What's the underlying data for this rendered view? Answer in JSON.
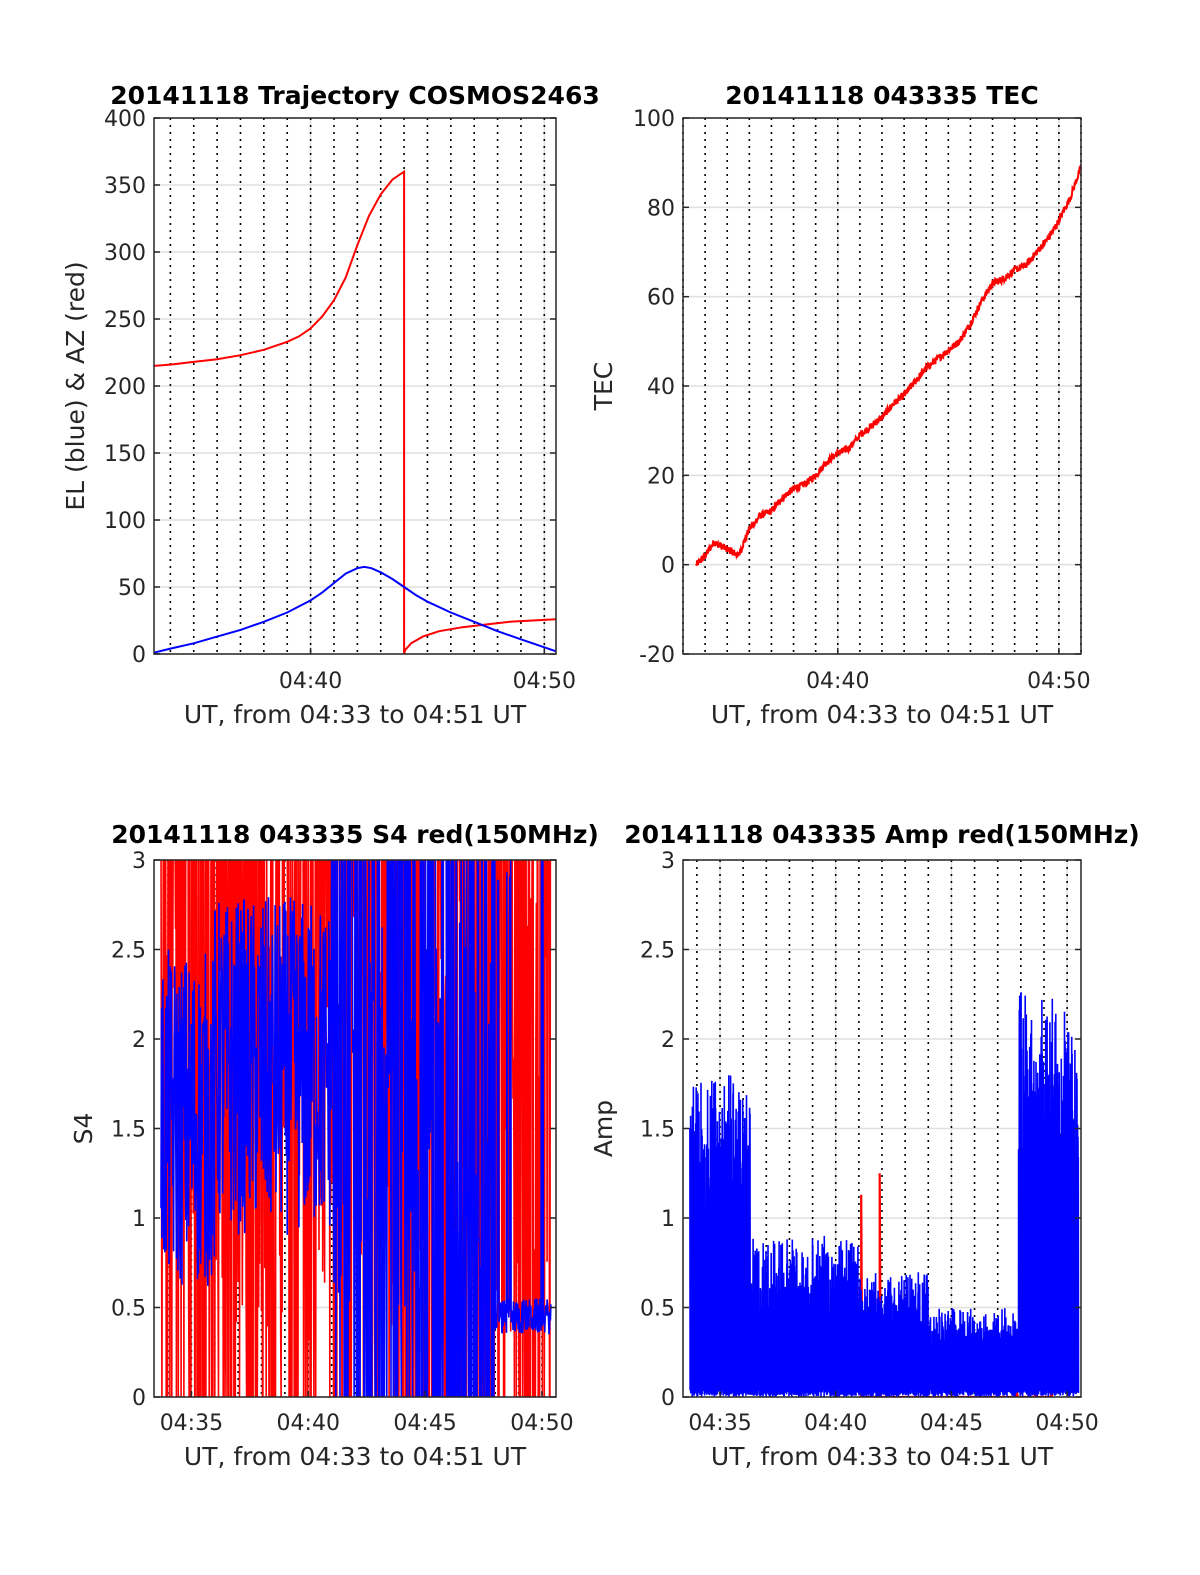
{
  "chart_data": [
    {
      "type": "line",
      "title": "20141118 Trajectory COSMOS2463",
      "xlabel": "UT, from 04:33 to 04:51 UT",
      "ylabel": "EL (blue) & AZ (red)",
      "xlim_min": [
        33.3,
        50.5
      ],
      "ylim": [
        0,
        400
      ],
      "yticks": [
        0,
        50,
        100,
        150,
        200,
        250,
        300,
        350,
        400
      ],
      "xticks": [
        {
          "value": 40,
          "label": "04:40"
        },
        {
          "value": 50,
          "label": "04:50"
        }
      ],
      "grid": true,
      "series": [
        {
          "color": "#ff0000",
          "x": [
            33.3,
            34,
            35,
            36,
            37,
            38,
            39,
            39.5,
            40,
            40.5,
            41,
            41.5,
            42,
            42.5,
            43,
            43.5,
            44.0,
            44.0,
            44.05,
            44.3,
            44.8,
            45.5,
            46.5,
            47.5,
            48.5,
            49.5,
            50.5
          ],
          "y": [
            215,
            216,
            218,
            220,
            223,
            227,
            233,
            237,
            243,
            252,
            264,
            281,
            305,
            327,
            343,
            354,
            360,
            0,
            3,
            8,
            13,
            17,
            20,
            22,
            24,
            25,
            26
          ]
        },
        {
          "color": "#0000ff",
          "x": [
            33.3,
            34,
            35,
            36,
            37,
            38,
            39,
            40,
            40.5,
            41,
            41.5,
            42,
            42.3,
            42.6,
            43,
            43.5,
            44,
            44.5,
            45,
            46,
            47,
            48,
            49,
            50,
            50.5
          ],
          "y": [
            1,
            4,
            8,
            13,
            18,
            24,
            31,
            40,
            46,
            53,
            60,
            64,
            65,
            64,
            61,
            56,
            50,
            44,
            39,
            31,
            24,
            17,
            11,
            5,
            2
          ]
        }
      ]
    },
    {
      "type": "line",
      "title": "20141118 043335 TEC",
      "xlabel": "UT, from 04:33 to 04:51 UT",
      "ylabel": "TEC",
      "xlim_min": [
        33.0,
        51.0
      ],
      "ylim": [
        -20,
        100
      ],
      "yticks": [
        -20,
        0,
        20,
        40,
        60,
        80,
        100
      ],
      "xticks": [
        {
          "value": 40,
          "label": "04:40"
        },
        {
          "value": 50,
          "label": "04:50"
        }
      ],
      "grid": true,
      "series": [
        {
          "color": "#ff0000",
          "x": [
            33.6,
            34.0,
            34.4,
            34.8,
            35.2,
            35.5,
            36.0,
            36.5,
            37.0,
            37.5,
            38.0,
            38.5,
            39.0,
            39.5,
            40.0,
            40.5,
            41.0,
            41.5,
            42.0,
            42.5,
            43.0,
            43.5,
            44.0,
            44.5,
            45.0,
            45.5,
            46.0,
            46.5,
            47.0,
            47.5,
            48.0,
            48.5,
            49.0,
            49.5,
            50.0,
            50.5,
            51.0
          ],
          "y": [
            0,
            2,
            5,
            4,
            3,
            2,
            8,
            11,
            12,
            15,
            17,
            18,
            20,
            23,
            25,
            26,
            29,
            31,
            33,
            36,
            38,
            41,
            44,
            46,
            48,
            50,
            54,
            59,
            63,
            64,
            66,
            67,
            70,
            73,
            77,
            82,
            89
          ]
        }
      ]
    },
    {
      "type": "line",
      "title": "20141118 043335 S4 red(150MHz)",
      "xlabel": "UT, from 04:33 to 04:51 UT",
      "ylabel": "S4",
      "xlim_min": [
        33.4,
        50.6
      ],
      "ylim": [
        0,
        3
      ],
      "yticks": [
        0,
        0.5,
        1,
        1.5,
        2,
        2.5,
        3
      ],
      "yticklabels": [
        "0",
        "0.5",
        "1",
        "1.5",
        "2",
        "2.5",
        "3"
      ],
      "xticks": [
        {
          "value": 35,
          "label": "04:35"
        },
        {
          "value": 40,
          "label": "04:40"
        },
        {
          "value": 45,
          "label": "04:45"
        },
        {
          "value": 50,
          "label": "04:50"
        }
      ],
      "grid": true
    },
    {
      "type": "line",
      "title": "20141118 043335 Amp red(150MHz)",
      "xlabel": "UT, from 04:33 to 04:51 UT",
      "ylabel": "Amp",
      "xlim_min": [
        33.4,
        50.6
      ],
      "ylim": [
        0,
        3
      ],
      "yticks": [
        0,
        0.5,
        1,
        1.5,
        2,
        2.5,
        3
      ],
      "yticklabels": [
        "0",
        "0.5",
        "1",
        "1.5",
        "2",
        "2.5",
        "3"
      ],
      "xticks": [
        {
          "value": 35,
          "label": "04:35"
        },
        {
          "value": 40,
          "label": "04:40"
        },
        {
          "value": 45,
          "label": "04:45"
        },
        {
          "value": 50,
          "label": "04:50"
        }
      ],
      "grid": true
    }
  ]
}
